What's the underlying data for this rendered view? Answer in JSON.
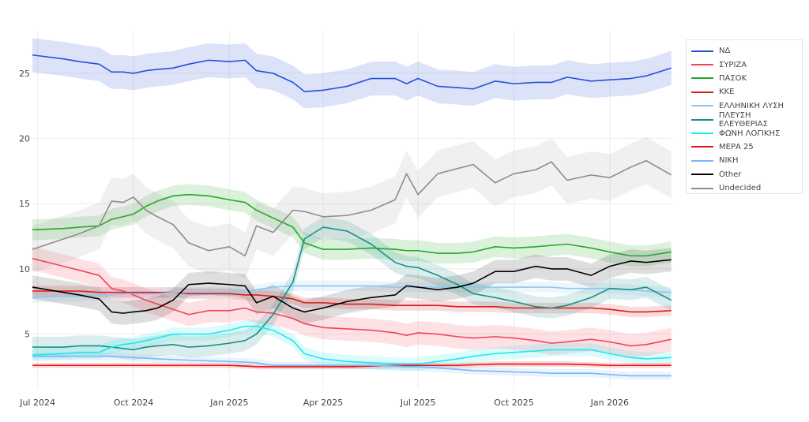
{
  "chart_data": {
    "type": "line",
    "title": "",
    "xlabel": "",
    "ylabel": "",
    "xlim": [
      "2024-06-26",
      "2026-03-02"
    ],
    "ylim": [
      0.8,
      28.2
    ],
    "grid": true,
    "legend_position": "right",
    "x_ticks": [
      {
        "date": "2024-07-01",
        "label": "Jul 2024"
      },
      {
        "date": "2024-10-01",
        "label": "Oct 2024"
      },
      {
        "date": "2025-01-01",
        "label": "Jan 2025"
      },
      {
        "date": "2025-04-01",
        "label": "Apr 2025"
      },
      {
        "date": "2025-07-01",
        "label": "Jul 2025"
      },
      {
        "date": "2025-10-01",
        "label": "Oct 2025"
      },
      {
        "date": "2026-01-01",
        "label": "Jan 2026"
      }
    ],
    "y_ticks": [
      5,
      10,
      15,
      20,
      25
    ],
    "x": [
      "2024-06-26",
      "2024-07-26",
      "2024-08-10",
      "2024-08-29",
      "2024-09-10",
      "2024-09-21",
      "2024-10-01",
      "2024-10-13",
      "2024-10-24",
      "2024-11-08",
      "2024-11-23",
      "2024-12-12",
      "2025-01-01",
      "2025-01-16",
      "2025-01-27",
      "2025-02-12",
      "2025-03-03",
      "2025-03-14",
      "2025-04-01",
      "2025-04-24",
      "2025-05-17",
      "2025-06-09",
      "2025-06-20",
      "2025-07-01",
      "2025-07-20",
      "2025-08-08",
      "2025-08-23",
      "2025-09-13",
      "2025-10-01",
      "2025-10-22",
      "2025-11-06",
      "2025-11-21",
      "2025-12-14",
      "2026-01-01",
      "2026-01-21",
      "2026-02-05",
      "2026-03-01"
    ],
    "series": [
      {
        "name": "ΝΔ",
        "color": "#2350dc",
        "ci": 1.3,
        "values": [
          26.4,
          26.1,
          25.9,
          25.7,
          25.1,
          25.1,
          25.0,
          25.2,
          25.3,
          25.4,
          25.7,
          26.0,
          25.9,
          26.0,
          25.2,
          25.0,
          24.3,
          23.6,
          23.7,
          24.0,
          24.6,
          24.6,
          24.2,
          24.6,
          24.0,
          23.9,
          23.8,
          24.4,
          24.2,
          24.3,
          24.3,
          24.7,
          24.4,
          24.5,
          24.6,
          24.8,
          25.4
        ]
      },
      {
        "name": "ΣΥΡΙΖΑ",
        "color": "#f24559",
        "ci": 0.9,
        "values": [
          10.8,
          10.2,
          9.9,
          9.5,
          8.5,
          8.3,
          8.0,
          7.6,
          7.3,
          6.9,
          6.5,
          6.8,
          6.8,
          7.0,
          6.7,
          6.6,
          6.2,
          5.8,
          5.5,
          5.4,
          5.3,
          5.1,
          4.9,
          5.1,
          5.0,
          4.8,
          4.7,
          4.8,
          4.7,
          4.5,
          4.3,
          4.4,
          4.6,
          4.4,
          4.1,
          4.2,
          4.6
        ]
      },
      {
        "name": "ΠΑΣΟΚ",
        "color": "#26a826",
        "ci": 0.8,
        "values": [
          13.0,
          13.1,
          13.2,
          13.3,
          13.8,
          14.0,
          14.2,
          14.8,
          15.2,
          15.6,
          15.7,
          15.6,
          15.3,
          15.1,
          14.5,
          13.9,
          13.2,
          12.0,
          11.5,
          11.5,
          11.6,
          11.5,
          11.4,
          11.4,
          11.2,
          11.2,
          11.3,
          11.7,
          11.6,
          11.7,
          11.8,
          11.9,
          11.6,
          11.3,
          11.0,
          11.0,
          11.3
        ]
      },
      {
        "name": "ΚΚΕ",
        "color": "#d81e1e",
        "ci": 0.4,
        "values": [
          8.3,
          8.3,
          8.3,
          8.2,
          8.2,
          8.2,
          8.2,
          8.2,
          8.2,
          8.2,
          8.1,
          8.1,
          8.1,
          8.0,
          8.0,
          7.9,
          7.7,
          7.4,
          7.4,
          7.3,
          7.3,
          7.2,
          7.2,
          7.2,
          7.2,
          7.1,
          7.1,
          7.1,
          7.0,
          7.0,
          7.0,
          7.0,
          7.0,
          6.9,
          6.7,
          6.7,
          6.8
        ]
      },
      {
        "name": "ΕΛΛΗΝΙΚΗ ΛΥΣΗ",
        "color": "#8cc8f2",
        "ci": 0.4,
        "values": [
          7.8,
          7.9,
          7.9,
          8.0,
          8.0,
          8.1,
          8.1,
          8.1,
          8.1,
          8.2,
          8.2,
          8.2,
          8.2,
          8.3,
          8.4,
          8.6,
          8.7,
          8.7,
          8.7,
          8.7,
          8.7,
          8.6,
          8.6,
          8.6,
          8.6,
          8.6,
          8.6,
          8.6,
          8.6,
          8.6,
          8.6,
          8.5,
          8.5,
          8.5,
          8.4,
          8.3,
          8.2
        ]
      },
      {
        "name": "ΠΛΕΥΣΗ ΕΛΕΥΘΕΡΙΑΣ",
        "color": "#169089",
        "ci": 0.8,
        "values": [
          4.0,
          4.0,
          4.1,
          4.1,
          4.0,
          3.9,
          3.8,
          4.0,
          4.1,
          4.2,
          4.0,
          4.1,
          4.3,
          4.5,
          5.0,
          6.5,
          9.0,
          12.3,
          13.2,
          12.9,
          11.9,
          10.5,
          10.2,
          10.1,
          9.5,
          8.8,
          8.1,
          7.8,
          7.5,
          7.1,
          7.0,
          7.2,
          7.8,
          8.5,
          8.4,
          8.6,
          7.6
        ]
      },
      {
        "name": "ΦΩΝΗ ΛΟΓΙΚΗΣ",
        "color": "#1ee8ee",
        "ci": 0.5,
        "values": [
          3.4,
          3.5,
          3.6,
          3.6,
          4.0,
          4.2,
          4.3,
          4.5,
          4.7,
          5.0,
          5.0,
          5.0,
          5.3,
          5.6,
          5.6,
          5.3,
          4.5,
          3.5,
          3.1,
          2.9,
          2.8,
          2.7,
          2.7,
          2.7,
          2.9,
          3.1,
          3.3,
          3.5,
          3.6,
          3.7,
          3.8,
          3.8,
          3.8,
          3.5,
          3.2,
          3.1,
          3.2
        ]
      },
      {
        "name": "ΜΕΡΑ 25",
        "color": "#ee1111",
        "ci": 0.2,
        "values": [
          2.6,
          2.6,
          2.6,
          2.6,
          2.6,
          2.6,
          2.6,
          2.6,
          2.6,
          2.6,
          2.6,
          2.6,
          2.6,
          2.55,
          2.5,
          2.5,
          2.5,
          2.5,
          2.5,
          2.5,
          2.55,
          2.6,
          2.6,
          2.6,
          2.6,
          2.6,
          2.65,
          2.7,
          2.7,
          2.7,
          2.7,
          2.7,
          2.65,
          2.6,
          2.6,
          2.6,
          2.6
        ]
      },
      {
        "name": "ΝΙΚΗ",
        "color": "#7ab8f5",
        "ci": 0.3,
        "values": [
          3.3,
          3.3,
          3.3,
          3.3,
          3.3,
          3.25,
          3.2,
          3.15,
          3.1,
          3.05,
          3.0,
          2.95,
          2.9,
          2.85,
          2.8,
          2.6,
          2.6,
          2.6,
          2.6,
          2.6,
          2.6,
          2.55,
          2.5,
          2.5,
          2.4,
          2.3,
          2.2,
          2.15,
          2.1,
          2.05,
          2.0,
          2.0,
          2.0,
          1.9,
          1.8,
          1.8,
          1.8
        ]
      },
      {
        "name": "Other",
        "color": "#000000",
        "ci": 0.9,
        "values": [
          8.6,
          8.2,
          8.0,
          7.7,
          6.7,
          6.6,
          6.7,
          6.8,
          7.0,
          7.6,
          8.8,
          8.9,
          8.8,
          8.7,
          7.4,
          7.9,
          7.0,
          6.7,
          7.0,
          7.5,
          7.8,
          8.0,
          8.7,
          8.6,
          8.4,
          8.6,
          8.9,
          9.8,
          9.8,
          10.2,
          10.0,
          10.0,
          9.5,
          10.2,
          10.6,
          10.5,
          10.7
        ]
      },
      {
        "name": "Undecided",
        "color": "#8c8c8c",
        "ci": 1.8,
        "values": [
          11.5,
          12.3,
          12.7,
          13.3,
          15.2,
          15.1,
          15.5,
          14.5,
          14.0,
          13.4,
          12.0,
          11.4,
          11.7,
          11.0,
          13.3,
          12.8,
          14.5,
          14.4,
          14.0,
          14.1,
          14.5,
          15.3,
          17.3,
          15.7,
          17.3,
          17.7,
          18.0,
          16.6,
          17.3,
          17.6,
          18.2,
          16.8,
          17.2,
          17.0,
          17.8,
          18.3,
          17.2
        ]
      }
    ]
  }
}
